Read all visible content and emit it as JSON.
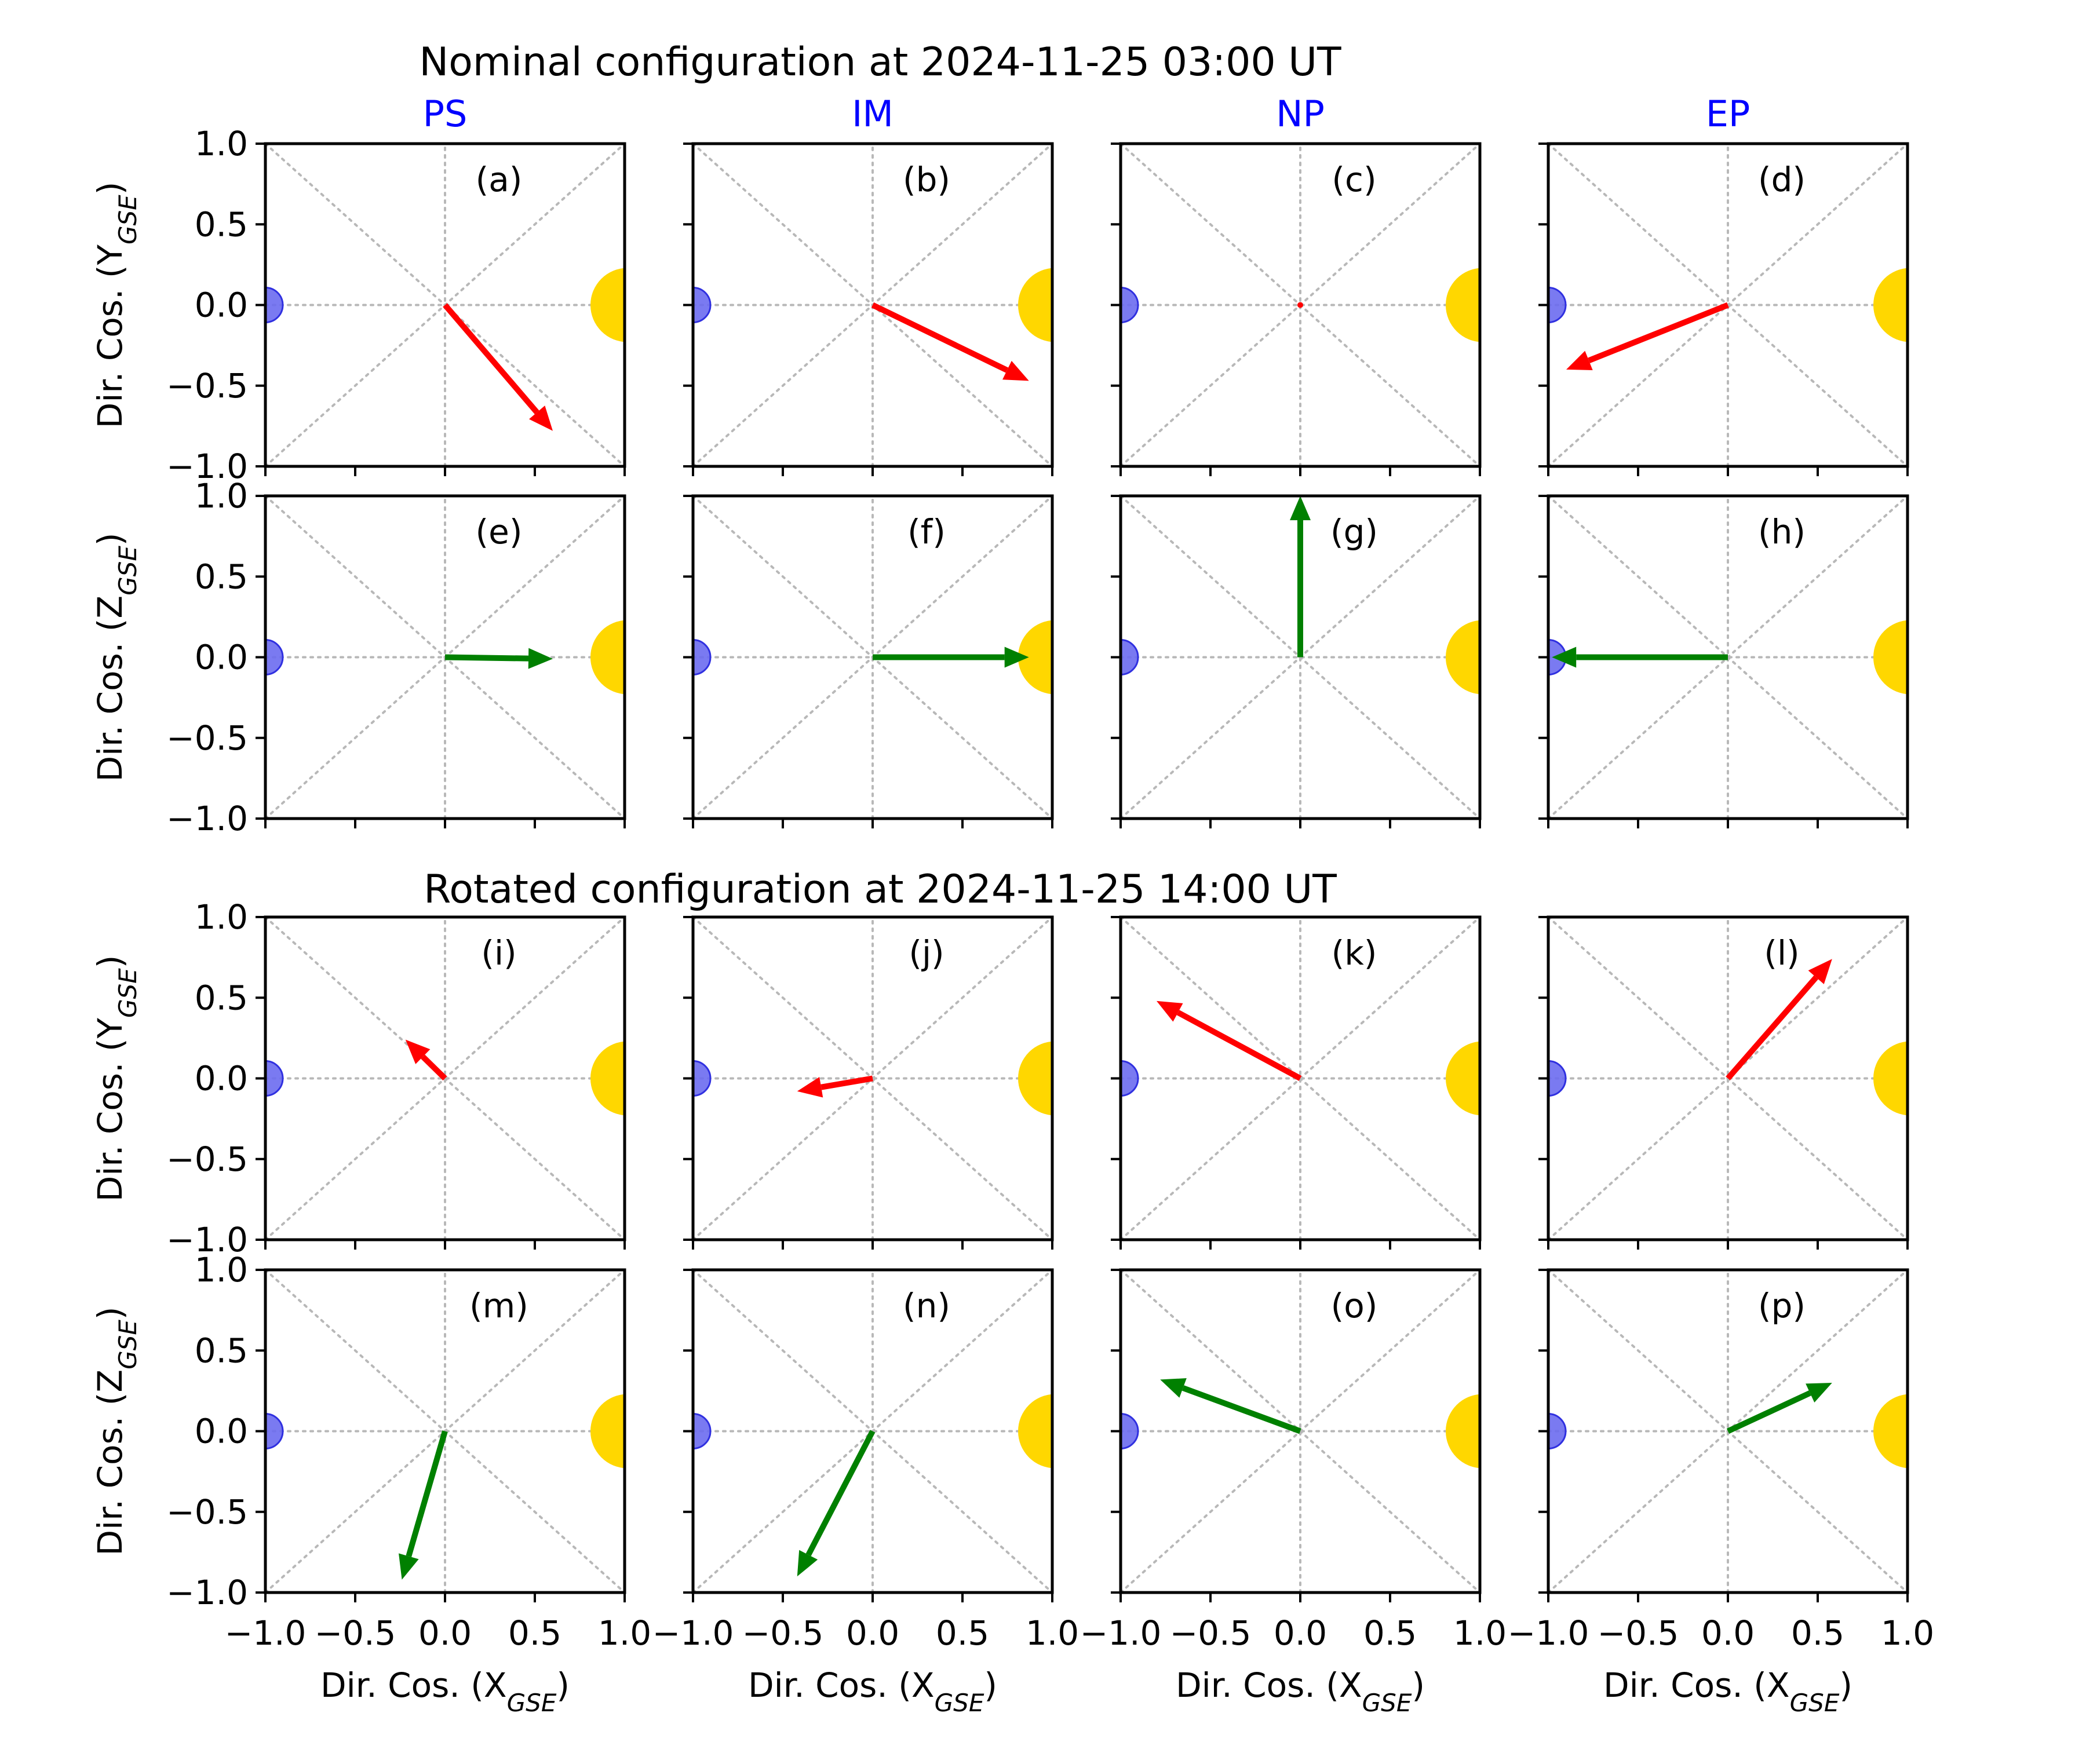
{
  "titles": {
    "top": "Nominal configuration at 2024-11-25 03:00 UT",
    "bottom": "Rotated configuration at 2024-11-25 14:00 UT"
  },
  "column_titles": [
    "PS",
    "IM",
    "NP",
    "EP"
  ],
  "labels": {
    "y_top": "Dir. Cos. (Y",
    "y_bottom": "Dir. Cos. (Z",
    "x": "Dir. Cos. (X",
    "subscript": "GSE",
    "close": ")"
  },
  "ticks": [
    "−1.0",
    "−0.5",
    "0.0",
    "0.5",
    "1.0"
  ],
  "colors": {
    "title_blue": "#0000ff",
    "arrow_xy": "#ff0000",
    "arrow_xz": "#008000",
    "earth": "#6b6bf0",
    "sun": "#ffd700",
    "guide": "#b8b8b8"
  },
  "chart_data": {
    "type": "vector-panels",
    "xlim": [
      -1,
      1
    ],
    "ylim": [
      -1,
      1
    ],
    "grid": "dotted diagonals and axes",
    "markers": {
      "earth": {
        "x": -1.0,
        "y": 0.0,
        "color": "blue"
      },
      "sun": {
        "x": 1.0,
        "y": 0.0,
        "color": "gold"
      }
    },
    "panels": [
      {
        "label": "(a)",
        "row": 0,
        "col": 0,
        "plane": "XY",
        "dx": 0.6,
        "dy": -0.78
      },
      {
        "label": "(b)",
        "row": 0,
        "col": 1,
        "plane": "XY",
        "dx": 0.87,
        "dy": -0.47
      },
      {
        "label": "(c)",
        "row": 0,
        "col": 2,
        "plane": "XY",
        "dx": 0.0,
        "dy": 0.0
      },
      {
        "label": "(d)",
        "row": 0,
        "col": 3,
        "plane": "XY",
        "dx": -0.9,
        "dy": -0.4
      },
      {
        "label": "(e)",
        "row": 1,
        "col": 0,
        "plane": "XZ",
        "dx": 0.6,
        "dy": -0.01
      },
      {
        "label": "(f)",
        "row": 1,
        "col": 1,
        "plane": "XZ",
        "dx": 0.87,
        "dy": 0.0
      },
      {
        "label": "(g)",
        "row": 1,
        "col": 2,
        "plane": "XZ",
        "dx": 0.0,
        "dy": 1.0
      },
      {
        "label": "(h)",
        "row": 1,
        "col": 3,
        "plane": "XZ",
        "dx": -0.98,
        "dy": 0.0
      },
      {
        "label": "(i)",
        "row": 2,
        "col": 0,
        "plane": "XY",
        "dx": -0.22,
        "dy": 0.24
      },
      {
        "label": "(j)",
        "row": 2,
        "col": 1,
        "plane": "XY",
        "dx": -0.42,
        "dy": -0.08
      },
      {
        "label": "(k)",
        "row": 2,
        "col": 2,
        "plane": "XY",
        "dx": -0.8,
        "dy": 0.48
      },
      {
        "label": "(l)",
        "row": 2,
        "col": 3,
        "plane": "XY",
        "dx": 0.58,
        "dy": 0.74
      },
      {
        "label": "(m)",
        "row": 3,
        "col": 0,
        "plane": "XZ",
        "dx": -0.24,
        "dy": -0.92
      },
      {
        "label": "(n)",
        "row": 3,
        "col": 1,
        "plane": "XZ",
        "dx": -0.42,
        "dy": -0.9
      },
      {
        "label": "(o)",
        "row": 3,
        "col": 2,
        "plane": "XZ",
        "dx": -0.78,
        "dy": 0.32
      },
      {
        "label": "(p)",
        "row": 3,
        "col": 3,
        "plane": "XZ",
        "dx": 0.58,
        "dy": 0.3
      }
    ]
  }
}
